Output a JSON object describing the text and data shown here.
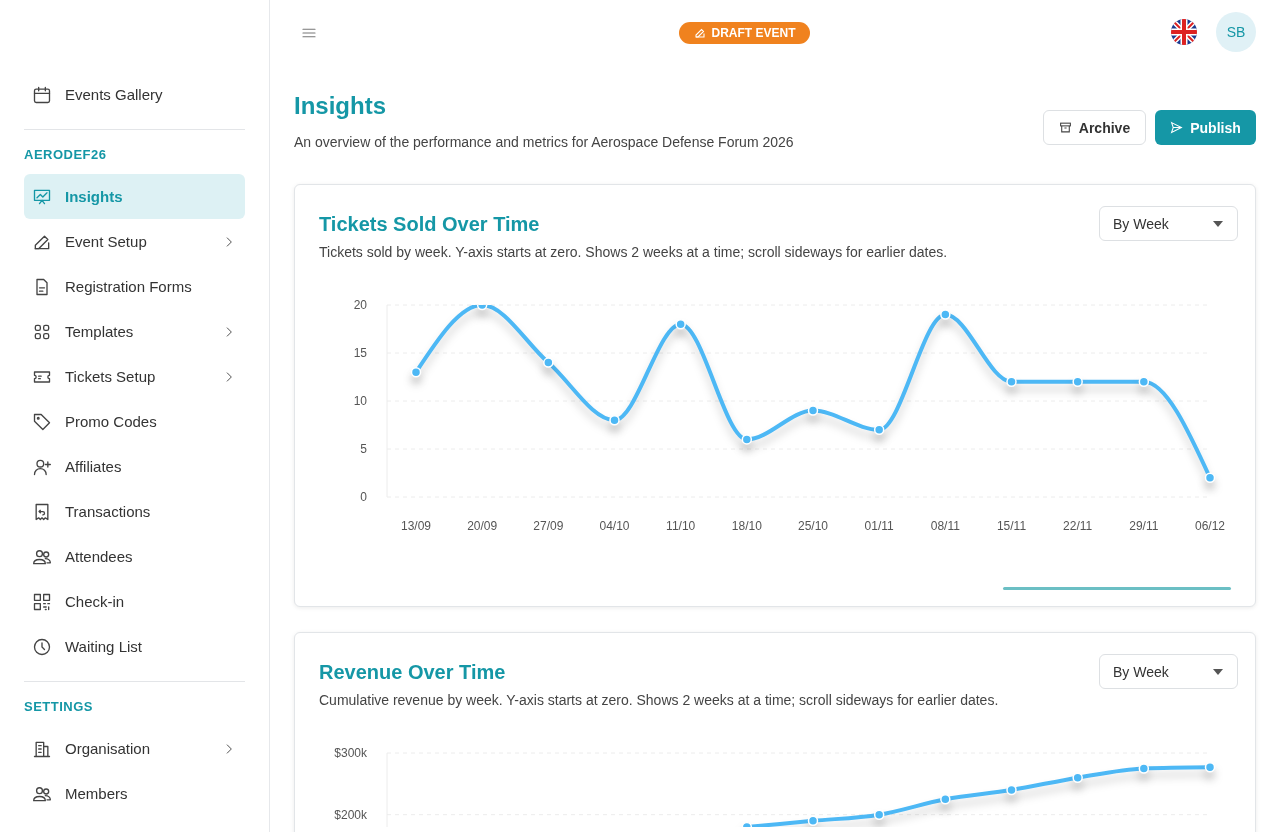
{
  "chart_data": [
    {
      "type": "other",
      "annotations": [
        "Events Gallery",
        "AERODEF26",
        "Insights",
        "Event Setup",
        "Registration Forms",
        "Templates",
        "Tickets Setup",
        "Promo Codes",
        "Affiliates",
        "Transactions",
        "Attendees",
        "Check-in",
        "Waiting List",
        "SETTINGS",
        "Organisation",
        "Members",
        "DRAFT EVENT",
        "SB",
        "Insights",
        "An overview of the performance and metrics for Aerospace Defense Forum 2026",
        "Archive",
        "Publish"
      ]
    },
    {
      "type": "line",
      "title": "Tickets Sold Over Time",
      "subtitle": "Tickets sold by week. Y-axis starts at zero. Shows 2 weeks at a time; scroll sideways for earlier dates.",
      "annotations": [
        "By Week"
      ],
      "categories": [
        "13/09",
        "20/09",
        "27/09",
        "04/10",
        "11/10",
        "18/10",
        "25/10",
        "01/11",
        "08/11",
        "15/11",
        "22/11",
        "29/11",
        "06/12"
      ],
      "series": [
        {
          "color": "#4db8f5",
          "values": [
            13,
            20,
            14,
            8,
            18,
            6,
            9,
            7,
            19,
            12,
            12,
            12,
            2
          ]
        }
      ],
      "ylim": [
        0,
        20
      ],
      "yticks": [
        0,
        5,
        10,
        15,
        20
      ],
      "grid": "y",
      "marker": "circle",
      "line_style": "solid"
    },
    {
      "type": "line",
      "title": "Revenue Over Time",
      "subtitle": "Cumulative revenue by week. Y-axis starts at zero. Shows 2 weeks at a time; scroll sideways for earlier dates.",
      "annotations": [
        "By Week"
      ],
      "categories": [
        null,
        null,
        null,
        null,
        null,
        null,
        null,
        null,
        null,
        null,
        null,
        null,
        null
      ],
      "series": [
        {
          "color": "#4db8f5",
          "values": [
            null,
            null,
            null,
            null,
            null,
            180000,
            190000,
            200000,
            225000,
            240000,
            260000,
            275000,
            277000
          ]
        }
      ],
      "ylim": [
        180000,
        300000
      ],
      "yticks": [
        {
          "value": 200000,
          "label": "$200k"
        },
        {
          "value": 300000,
          "label": "$300k"
        }
      ],
      "grid": "y",
      "marker": "circle",
      "line_style": "solid"
    }
  ]
}
